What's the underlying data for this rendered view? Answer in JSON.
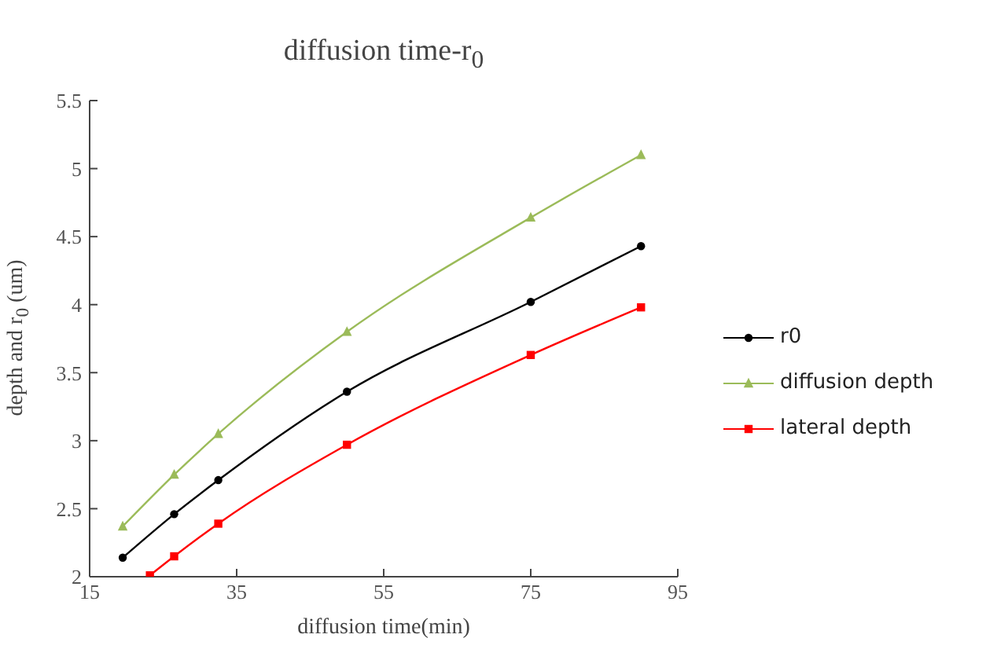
{
  "chart_data": {
    "type": "line",
    "title": "diffusion time-r$_{0}$",
    "xlabel": "diffusion time(min)",
    "ylabel": "depth and r$_{0}$ (um)",
    "x": [
      19.5,
      26.5,
      32.5,
      50,
      75,
      90
    ],
    "series": [
      {
        "name": "r0",
        "color": "#000000",
        "marker": "circle",
        "values": [
          2.14,
          2.46,
          2.71,
          3.36,
          4.02,
          4.43
        ]
      },
      {
        "name": "diffusion depth",
        "color": "#9bbb59",
        "marker": "triangle",
        "values": [
          2.37,
          2.75,
          3.05,
          3.8,
          4.64,
          5.1
        ]
      },
      {
        "name": "lateral depth",
        "color": "#ff0000",
        "marker": "square",
        "x": [
          23.2,
          26.5,
          32.5,
          50,
          75,
          90
        ],
        "values": [
          2.01,
          2.15,
          2.39,
          2.97,
          3.63,
          3.98
        ]
      }
    ],
    "xlim": [
      15,
      95
    ],
    "xticks": [
      15,
      35,
      55,
      75,
      95
    ],
    "ylim": [
      2,
      5.5
    ],
    "yticks": [
      2,
      2.5,
      3,
      3.5,
      4,
      4.5,
      5,
      5.5
    ],
    "grid": false,
    "legend": "right",
    "line_style": "solid"
  }
}
